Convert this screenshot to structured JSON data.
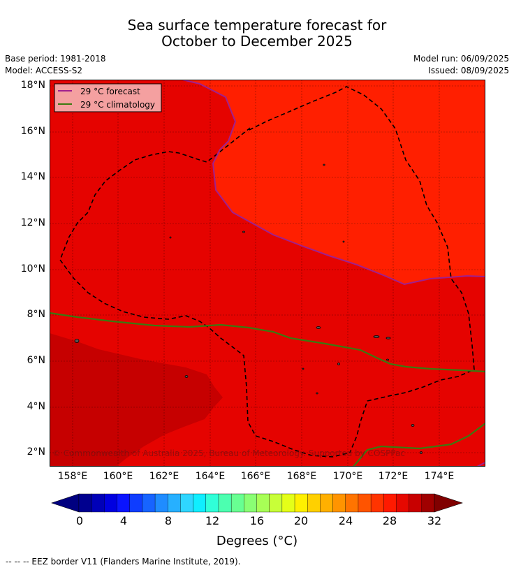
{
  "title_line1": "Sea surface temperature forecast for",
  "title_line2": "October to December 2025",
  "base_period": "Base period: 1981-2018",
  "model": "Model: ACCESS-S2",
  "model_run": "Model run: 06/09/2025",
  "issued": "Issued: 08/09/2025",
  "legend": {
    "forecast": "29 °C  forecast",
    "climatology": "29 °C  climatology",
    "forecast_color": "#a0208e",
    "climatology_color": "#3a7a10"
  },
  "lat_labels": [
    "18°N",
    "16°N",
    "14°N",
    "12°N",
    "10°N",
    "8°N",
    "6°N",
    "4°N",
    "2°N"
  ],
  "lon_labels": [
    "158°E",
    "160°E",
    "162°E",
    "164°E",
    "166°E",
    "168°E",
    "170°E",
    "172°E",
    "174°E"
  ],
  "copyright": "© Commonwealth of Australia 2025, Bureau of Meteorology. Supported by COSPPac",
  "colorbar": {
    "ticks": [
      "0",
      "4",
      "8",
      "12",
      "16",
      "20",
      "24",
      "28",
      "32"
    ],
    "label": "Degrees (°C)",
    "colors": [
      "#00008f",
      "#0000b8",
      "#0000e0",
      "#0a14ff",
      "#0f3dff",
      "#1764ff",
      "#1f8cff",
      "#27b0ff",
      "#2fd6ff",
      "#10eeff",
      "#30ffd8",
      "#4cffb0",
      "#68ff92",
      "#8aff74",
      "#a8ff56",
      "#c8ff38",
      "#e4ff18",
      "#fff000",
      "#ffd000",
      "#ffb000",
      "#ff9400",
      "#ff7400",
      "#ff5400",
      "#ff3400",
      "#ff1a00",
      "#e60800",
      "#c80000",
      "#a00000"
    ],
    "under_color": "#000080",
    "over_color": "#800000"
  },
  "footnote": "--  --  -- EEZ border V11 (Flanders Marine Institute, 2019)."
}
